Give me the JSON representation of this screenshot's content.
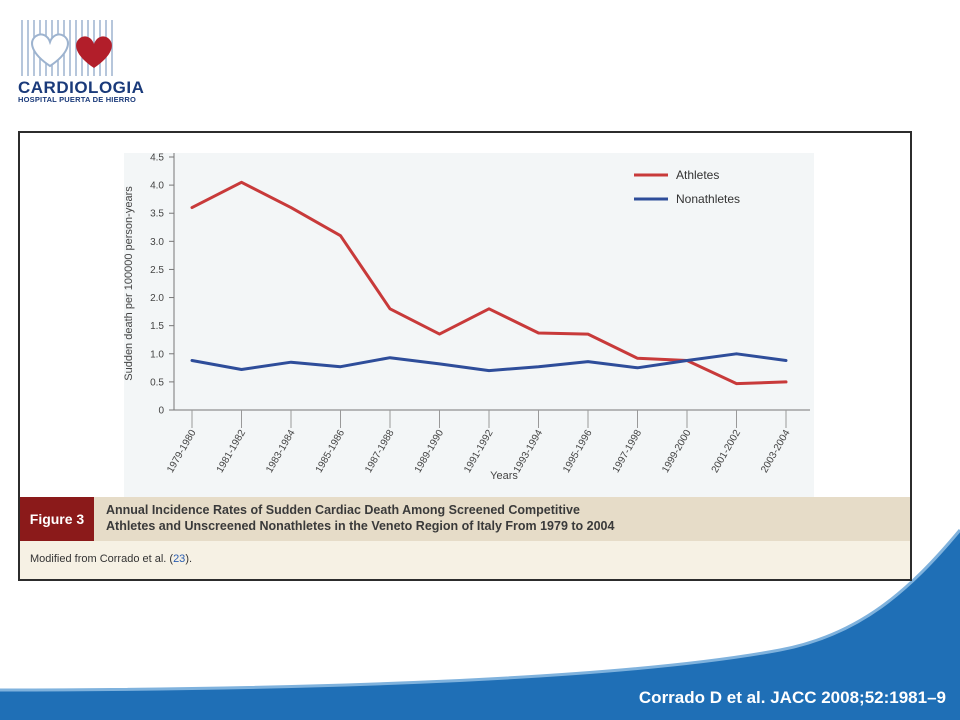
{
  "logo": {
    "word": "CARDIOLOGIA",
    "sub": "HOSPITAL PUERTA DE HIERRO"
  },
  "figure": {
    "label": "Figure 3",
    "caption_line1": "Annual Incidence Rates of Sudden Cardiac Death Among Screened Competitive",
    "caption_line2": "Athletes and Unscreened Nonathletes in the Veneto Region of Italy From 1979 to 2004",
    "note_prefix": "Modified from Corrado et al. (",
    "note_ref": "23",
    "note_suffix": ")."
  },
  "citation": "Corrado D et al. JACC 2008;52:1981–9",
  "colors": {
    "athletes": "#c83a3a",
    "nonathletes": "#2e4d9a",
    "brand_blue": "#1f6fb6",
    "figure_label_bg": "#8b1a1a"
  },
  "chart_data": {
    "type": "line",
    "title": "",
    "xlabel": "Years",
    "ylabel": "Sudden death per 100000 person-years",
    "ylim": [
      0,
      4.5
    ],
    "yticks": [
      "0",
      "0.5",
      "1.0",
      "1.5",
      "2.0",
      "2.5",
      "3.0",
      "3.5",
      "4.0",
      "4.5"
    ],
    "categories": [
      "1979-1980",
      "1981-1982",
      "1983-1984",
      "1985-1986",
      "1987-1988",
      "1989-1990",
      "1991-1992",
      "1993-1994",
      "1995-1996",
      "1997-1998",
      "1999-2000",
      "2001-2002",
      "2003-2004"
    ],
    "legend_position": "top-right",
    "series": [
      {
        "name": "Athletes",
        "values": [
          3.6,
          4.05,
          3.6,
          3.1,
          1.8,
          1.35,
          1.8,
          1.37,
          1.35,
          0.92,
          0.88,
          0.47,
          0.5
        ]
      },
      {
        "name": "Nonathletes",
        "values": [
          0.88,
          0.72,
          0.85,
          0.77,
          0.93,
          0.82,
          0.7,
          0.77,
          0.86,
          0.75,
          0.88,
          1.0,
          0.88
        ]
      }
    ]
  }
}
